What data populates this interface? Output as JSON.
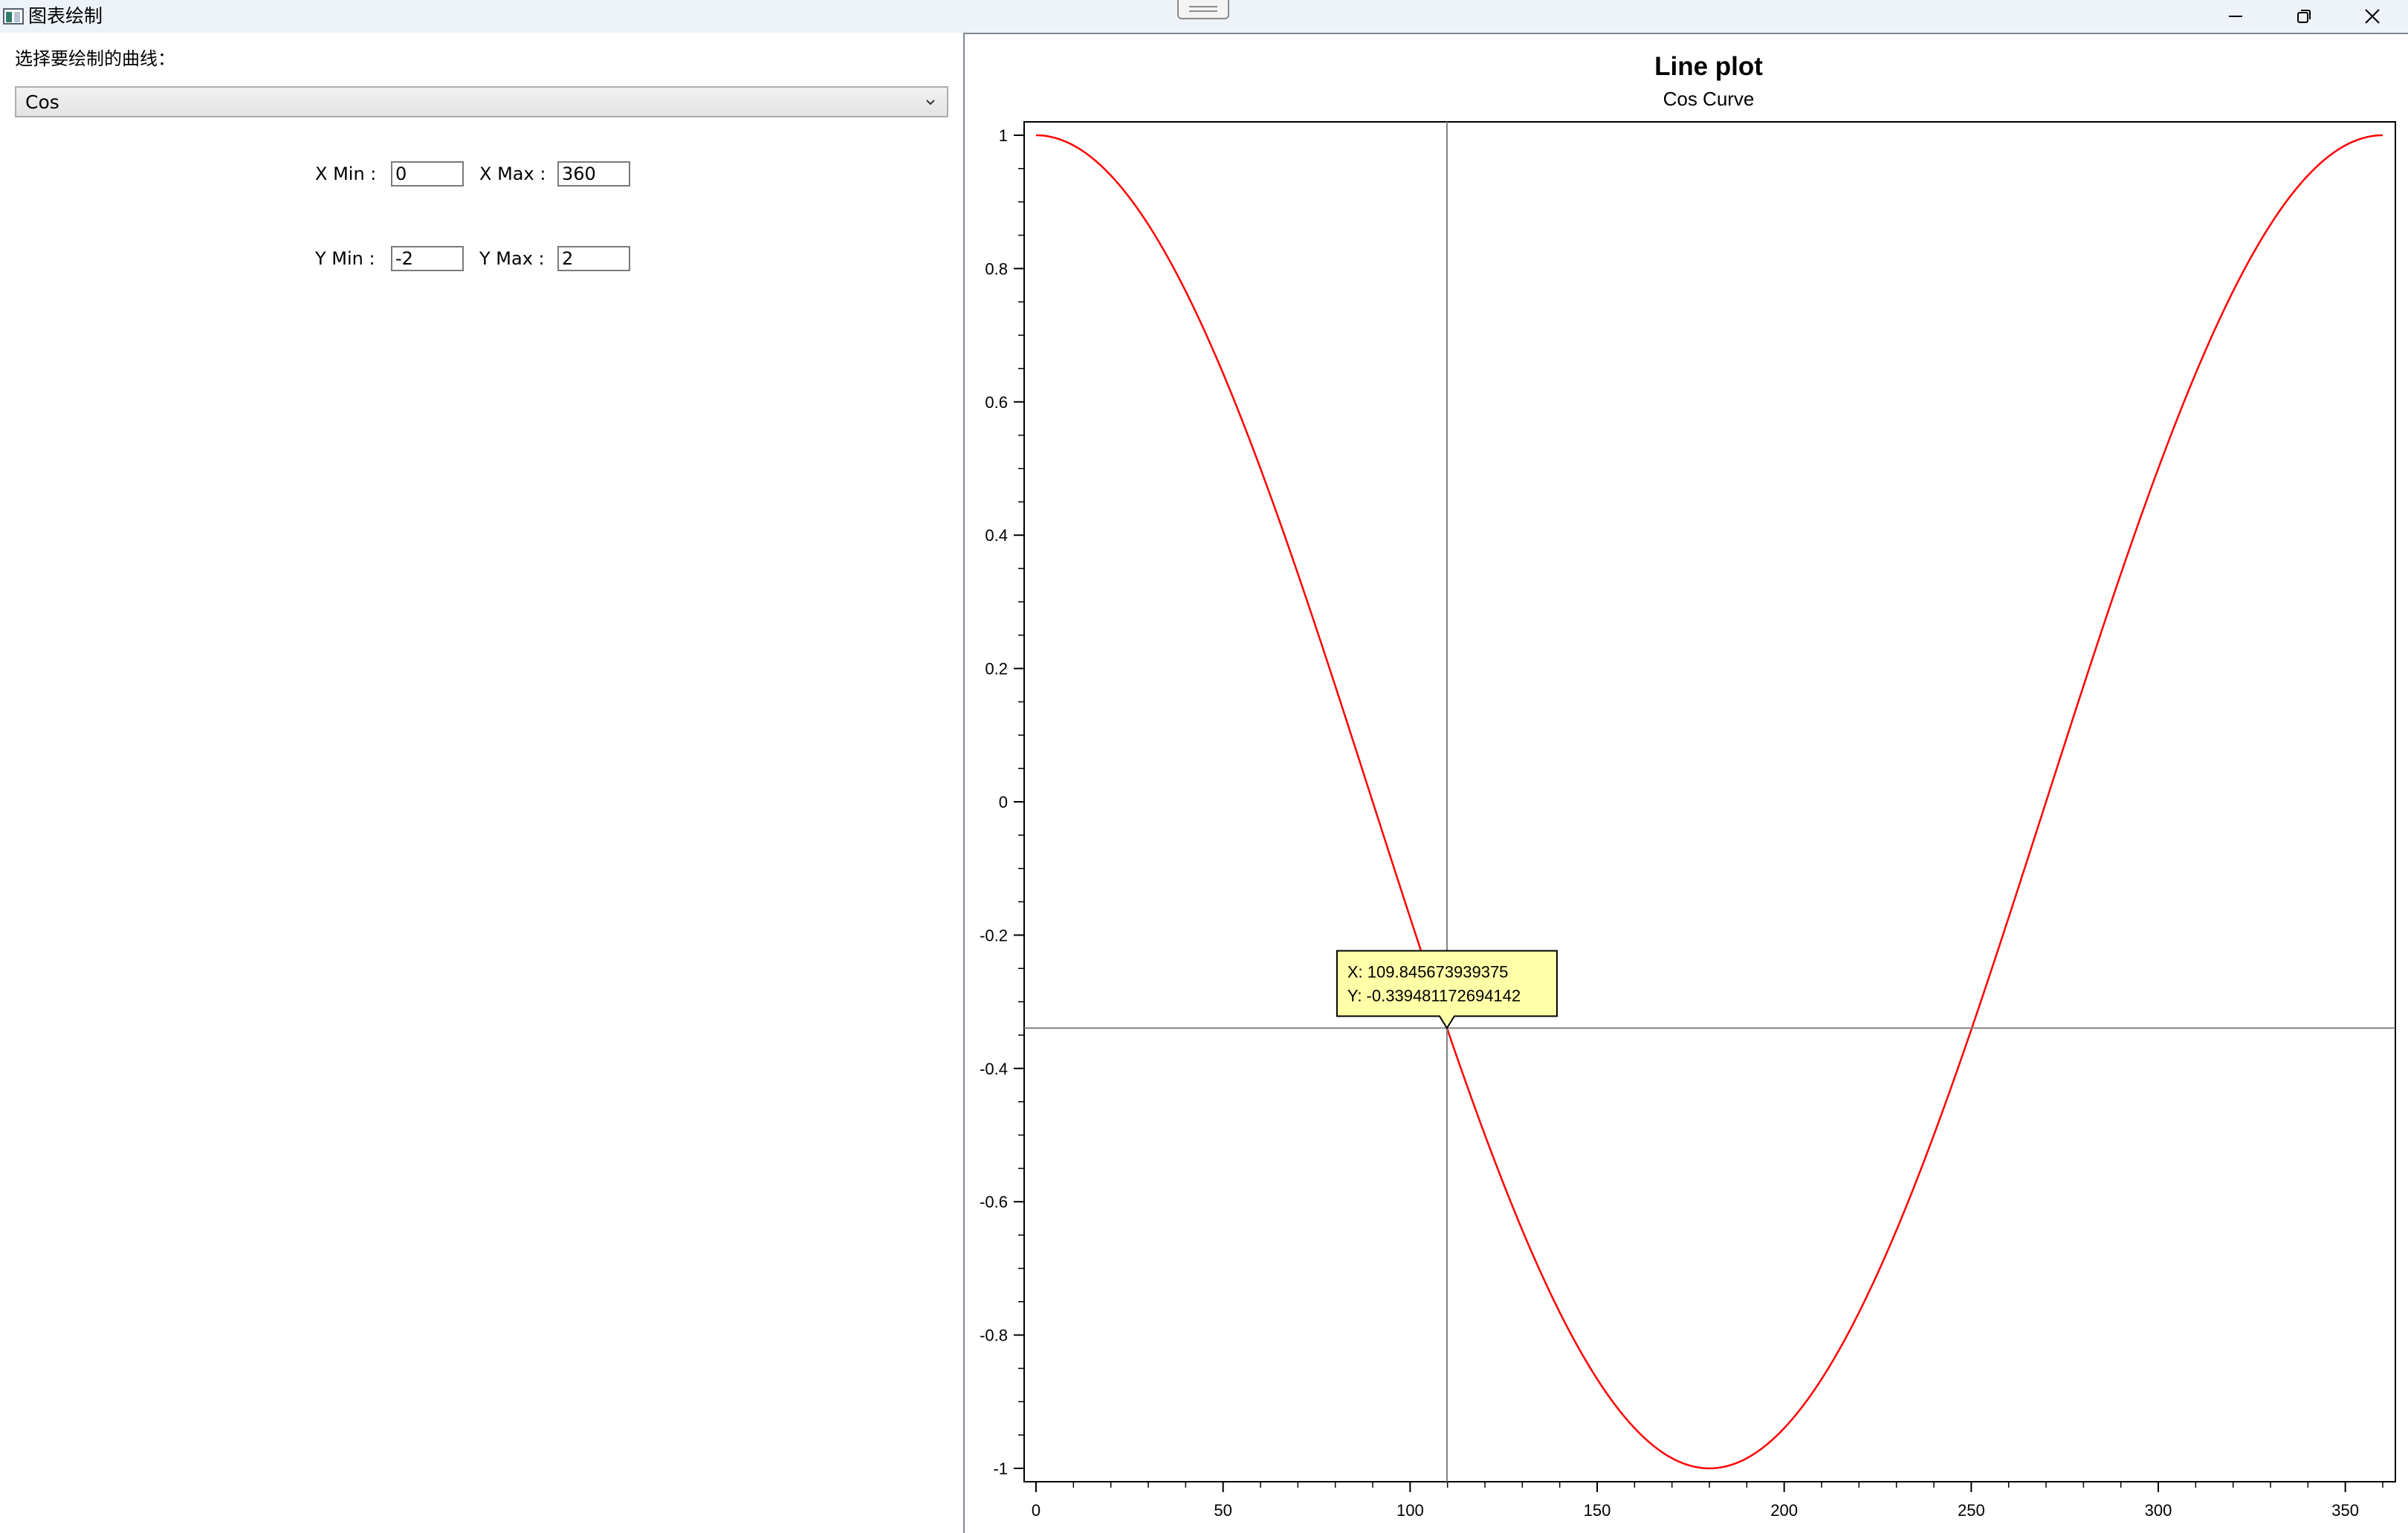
{
  "window": {
    "title": "图表绘制",
    "controls": [
      "minimize",
      "maximize",
      "close"
    ]
  },
  "panel": {
    "curve_label": "选择要绘制的曲线：",
    "curve_selected": "Cos",
    "x_min_label": "X Min :",
    "x_min_value": "0",
    "x_max_label": "X Max :",
    "x_max_value": "360",
    "y_min_label": "Y Min :",
    "y_min_value": "-2",
    "y_max_label": "Y Max :",
    "y_max_value": "2"
  },
  "chart_data": {
    "type": "line",
    "title": "Line plot",
    "subtitle": "Cos Curve",
    "xlabel": "",
    "ylabel": "",
    "xlim": [
      0,
      360
    ],
    "ylim": [
      -1,
      1
    ],
    "x_ticks": [
      "0",
      "50",
      "100",
      "150",
      "200",
      "250",
      "300",
      "350"
    ],
    "y_ticks": [
      "1",
      "0.8",
      "0.6",
      "0.4",
      "0.2",
      "0",
      "-0.2",
      "-0.4",
      "-0.6",
      "-0.8",
      "-1"
    ],
    "series": [
      {
        "function": "cos(x degrees)",
        "color": "#ff0000",
        "x": [
          0,
          15,
          30,
          45,
          60,
          75,
          90,
          105,
          120,
          135,
          150,
          165,
          180,
          195,
          210,
          225,
          240,
          255,
          270,
          285,
          300,
          315,
          330,
          345,
          360
        ],
        "y": [
          1,
          0.966,
          0.866,
          0.707,
          0.5,
          0.259,
          0,
          -0.259,
          -0.5,
          -0.707,
          -0.866,
          -0.966,
          -1,
          -0.966,
          -0.866,
          -0.707,
          -0.5,
          -0.259,
          0,
          0.259,
          0.5,
          0.707,
          0.866,
          0.966,
          1
        ]
      }
    ],
    "tracker": {
      "x": 109.845673939375,
      "y": -0.339481172694142,
      "line1": "X: 109.845673939375",
      "line2": "Y: -0.339481172694142"
    },
    "grid": false
  }
}
